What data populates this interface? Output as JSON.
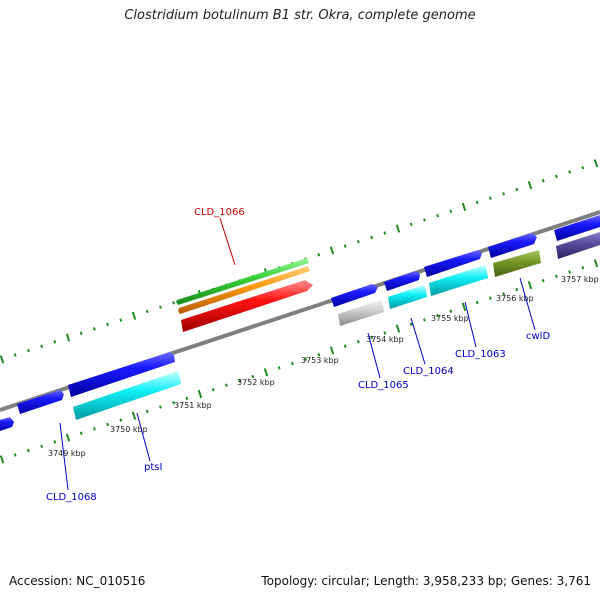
{
  "title": "Clostridium botulinum B1 str. Okra, complete genome",
  "footer": {
    "accession": "Accession: NC_010516",
    "topology": "Topology: circular; Length: 3,958,233 bp; Genes: 3,761"
  },
  "scale_labels": [
    "3749 kbp",
    "3750 kbp",
    "3751 kbp",
    "3752 kbp",
    "3753 kbp",
    "3754 kbp",
    "3755 kbp",
    "3756 kbp",
    "3757 kbp"
  ],
  "gene_labels": {
    "cld_1066": "CLD_1066",
    "cld_1068": "CLD_1068",
    "ptsi": "ptsI",
    "cld_1065": "CLD_1065",
    "cld_1064": "CLD_1064",
    "cld_1063": "CLD_1063",
    "cwld": "cwlD"
  },
  "colors": {
    "blue_gene": "#1414e6",
    "cyan_gene": "#00d8e0",
    "grey_gene": "#bdbdbd",
    "olive_gene": "#6b8e23",
    "slate_gene": "#483d8b",
    "green_gene": "#32cd32",
    "orange_gene": "#ff8c00",
    "red_gene": "#ff0000",
    "backbone": "#808080",
    "tick": "#228b22",
    "label_blue": "#0000c8",
    "label_red": "#c80000"
  }
}
